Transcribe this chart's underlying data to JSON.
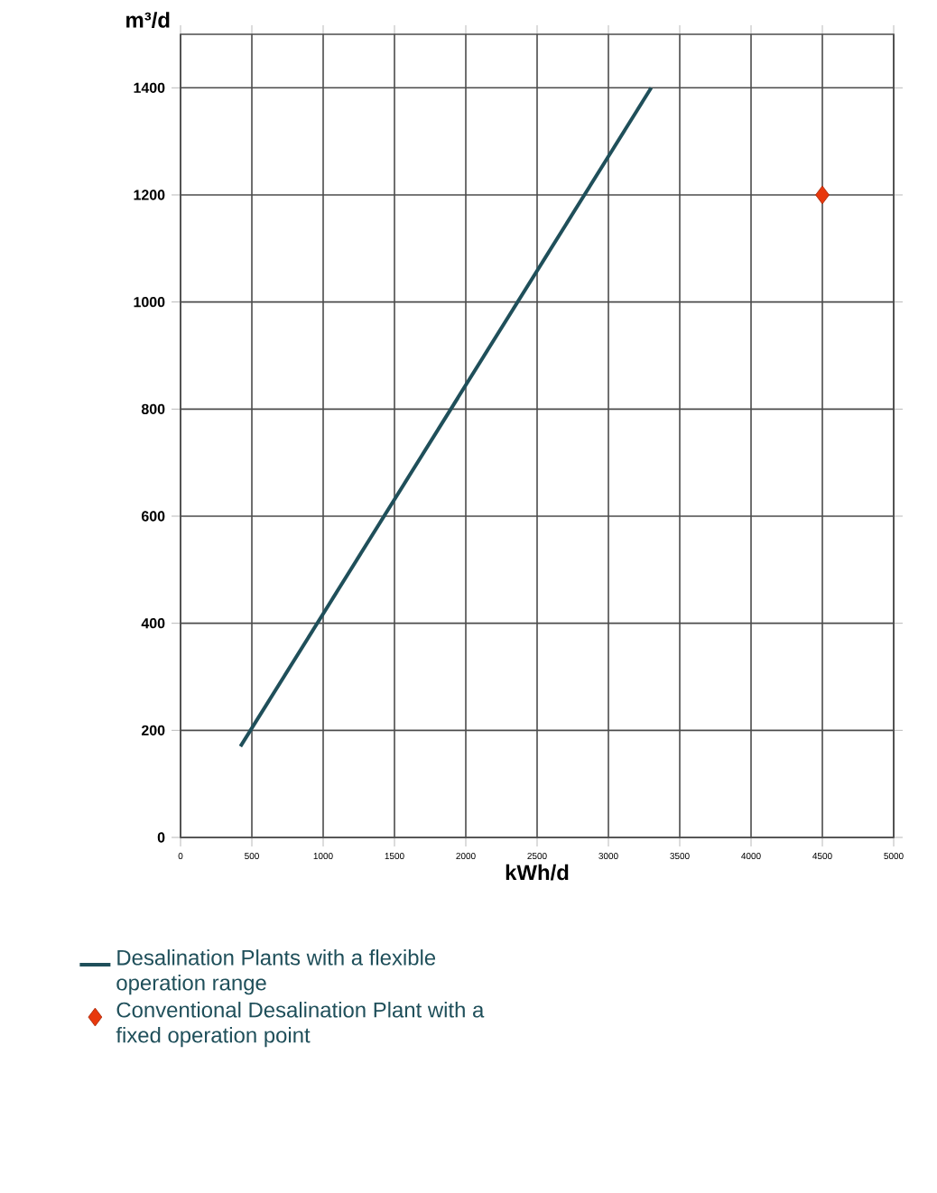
{
  "chart_data": {
    "type": "line",
    "xlabel": "kWh/d",
    "ylabel": "m³/d",
    "xlim": [
      0,
      5000
    ],
    "ylim": [
      0,
      1500
    ],
    "xticks": [
      0,
      500,
      1000,
      1500,
      2000,
      2500,
      3000,
      3500,
      4000,
      4500,
      5000
    ],
    "yticks": [
      0,
      200,
      400,
      600,
      800,
      1000,
      1200,
      1400
    ],
    "grid": true,
    "legend": "bottom",
    "series": [
      {
        "name": "Desalination Plants with a flexible operation range",
        "color": "#1f4f5a",
        "marker": "none",
        "x": [
          420,
          3300
        ],
        "values": [
          170,
          1400
        ]
      },
      {
        "name": "Conventional Desalination Plant with a fixed operation point",
        "type": "scatter",
        "color": "#e8380d",
        "marker": "diamond",
        "x": [
          4500
        ],
        "values": [
          1200
        ]
      }
    ]
  }
}
